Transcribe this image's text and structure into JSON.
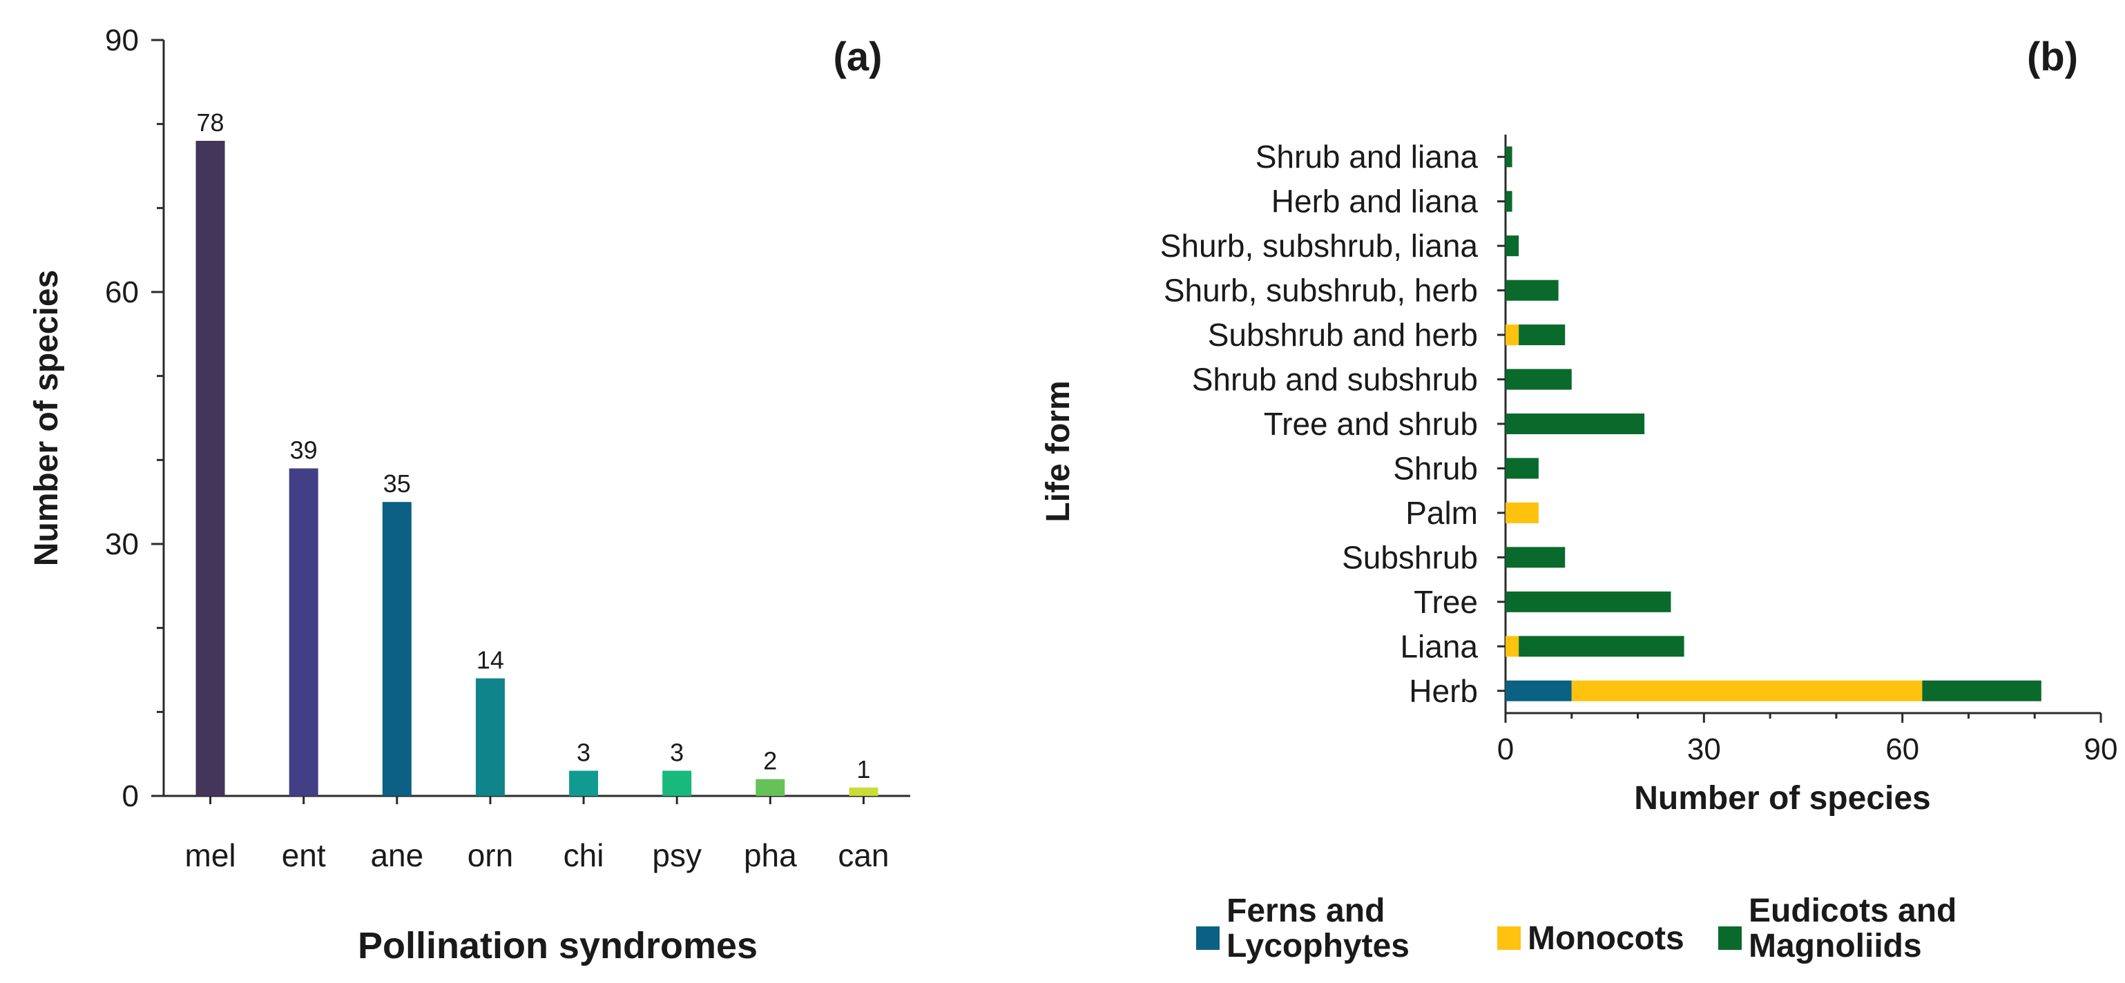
{
  "chart_data": [
    {
      "type": "bar",
      "panel_label": "(a)",
      "categories": [
        "mel",
        "ent",
        "ane",
        "orn",
        "chi",
        "psy",
        "pha",
        "can"
      ],
      "values": [
        78,
        39,
        35,
        14,
        3,
        3,
        2,
        1
      ],
      "value_labels": [
        "78",
        "39",
        "35",
        "14",
        "3",
        "3",
        "2",
        "1"
      ],
      "colors": [
        "#44355a",
        "#433f86",
        "#0b6083",
        "#0f848a",
        "#119b90",
        "#19b87c",
        "#65c258",
        "#c9dc37"
      ],
      "xlabel": "Pollination syndromes",
      "ylabel": "Number of species",
      "ylim": [
        0,
        90
      ],
      "yticks": [
        0,
        30,
        60,
        90
      ],
      "ytick_labels": [
        "0",
        "30",
        "60",
        "90"
      ],
      "grid": false
    },
    {
      "type": "bar",
      "orientation": "horizontal",
      "stacked": true,
      "panel_label": "(b)",
      "categories": [
        "Herb",
        "Liana",
        "Tree",
        "Subshrub",
        "Palm",
        "Shrub",
        "Tree and shrub",
        "Shrub and subshrub",
        "Subshrub and herb",
        "Shurb, subshrub, herb",
        "Shurb, subshrub, liana",
        "Herb and liana",
        "Shrub and liana"
      ],
      "series": [
        {
          "name": "Ferns and Lycophytes",
          "color": "#0b6184",
          "values": [
            10,
            0,
            0,
            0,
            0,
            0,
            0,
            0,
            0,
            0,
            0,
            0,
            0
          ]
        },
        {
          "name": "Monocots",
          "color": "#ffc20e",
          "values": [
            53,
            2,
            0,
            0,
            5,
            0,
            0,
            0,
            2,
            0,
            0,
            0,
            0
          ]
        },
        {
          "name": "Eudicots and Magnoliids",
          "color": "#0a6a2c",
          "values": [
            18,
            25,
            25,
            9,
            0,
            5,
            21,
            10,
            7,
            8,
            2,
            1,
            1
          ]
        }
      ],
      "xlabel": "Number of species",
      "ylabel": "Life form",
      "xlim": [
        0,
        90
      ],
      "xticks": [
        0,
        30,
        60,
        90
      ],
      "xtick_labels": [
        "0",
        "30",
        "60",
        "90"
      ],
      "grid": false,
      "legend": {
        "placement": "bottom",
        "entries": [
          {
            "name": "Ferns and Lycophytes",
            "lines": [
              "Ferns and",
              "Lycophytes"
            ],
            "color": "#0b6184"
          },
          {
            "name": "Monocots",
            "lines": [
              "Monocots"
            ],
            "color": "#ffc20e"
          },
          {
            "name": "Eudicots and Magnoliids",
            "lines": [
              "Eudicots and",
              "Magnoliids"
            ],
            "color": "#0a6a2c"
          }
        ]
      }
    }
  ]
}
